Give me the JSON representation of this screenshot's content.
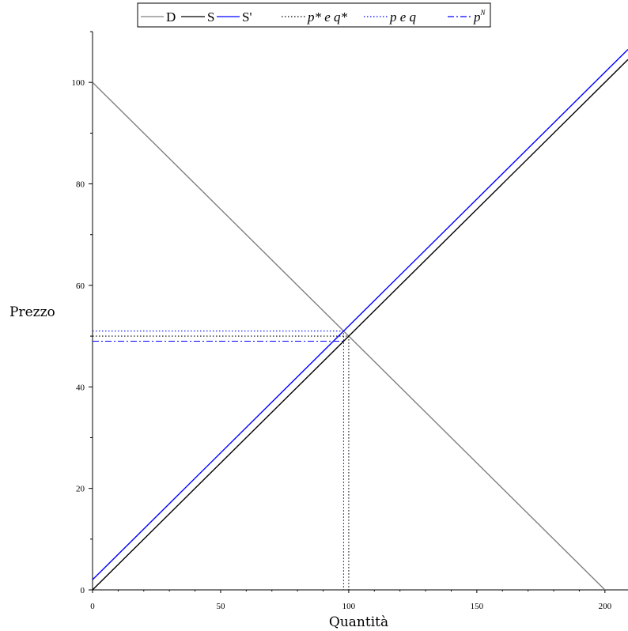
{
  "chart_data": {
    "type": "line",
    "xlabel": "Quantità",
    "ylabel": "Prezzo",
    "xlim": [
      0,
      209
    ],
    "ylim": [
      0,
      110
    ],
    "x_ticks": [
      0,
      50,
      100,
      150,
      200
    ],
    "y_ticks": [
      0,
      20,
      40,
      60,
      80,
      100
    ],
    "grid": false,
    "legend_position": "top",
    "series": [
      {
        "name": "D",
        "color": "#808080",
        "style": "solid",
        "points": [
          [
            0,
            100
          ],
          [
            200,
            0
          ]
        ]
      },
      {
        "name": "S",
        "color": "#000000",
        "style": "solid",
        "points": [
          [
            0,
            0
          ],
          [
            209,
            104.5
          ]
        ]
      },
      {
        "name": "S'",
        "color": "#0000ff",
        "style": "solid",
        "points": [
          [
            0,
            2
          ],
          [
            209,
            106.5
          ]
        ]
      },
      {
        "name": "p* e q*",
        "color": "#000000",
        "style": "dotted",
        "points": [
          [
            0,
            50
          ],
          [
            100,
            50
          ],
          [
            100,
            0
          ]
        ]
      },
      {
        "name": "p e q",
        "color": "#0000ff",
        "style": "dotted",
        "points": [
          [
            0,
            51
          ],
          [
            98,
            51
          ],
          [
            98,
            0
          ]
        ]
      },
      {
        "name": "p^N",
        "color": "#0000ff",
        "style": "dashdot",
        "points": [
          [
            0,
            49
          ],
          [
            98,
            49
          ]
        ]
      }
    ]
  }
}
